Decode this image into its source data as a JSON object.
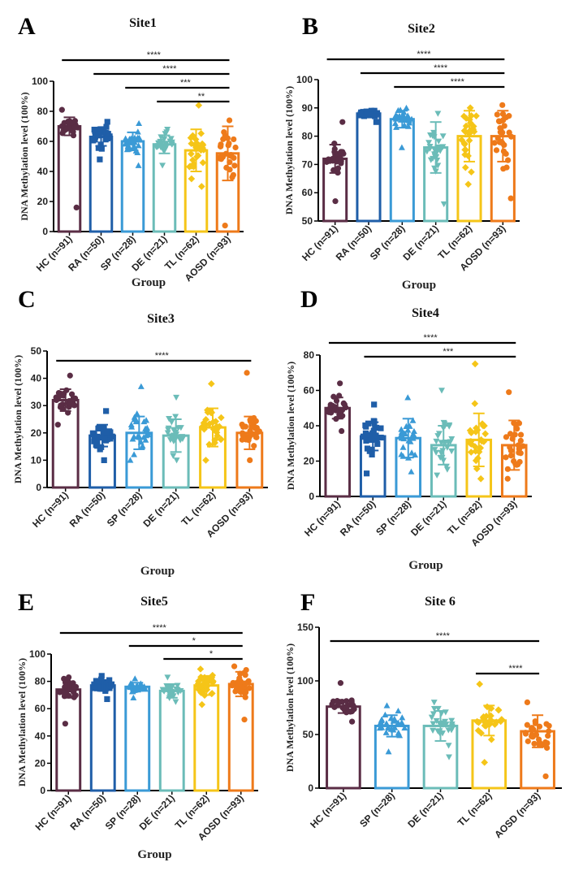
{
  "figure": {
    "group_colors": {
      "HC": "#5a2d45",
      "RA": "#1f5ea8",
      "SP": "#3a9ad6",
      "DE": "#6bbcb8",
      "TL": "#f5c518",
      "AOSD": "#ee7a1a"
    },
    "group_markers": {
      "HC": "circle",
      "RA": "square",
      "SP": "triangle-up",
      "DE": "triangle-down",
      "TL": "diamond",
      "AOSD": "circle"
    }
  },
  "chart_data": [
    {
      "id": "A",
      "type": "bar",
      "letter": "A",
      "title": "Site1",
      "xlabel": "Group",
      "ylabel": "DNA Methylation level (100%)",
      "categories": [
        "HC (n=91)",
        "RA (n=50)",
        "SP (n=28)",
        "DE (n=21)",
        "TL (n=62)",
        "AOSD (n=93)"
      ],
      "groups": [
        "HC",
        "RA",
        "SP",
        "DE",
        "TL",
        "AOSD"
      ],
      "ylim": [
        0,
        100
      ],
      "yticks": [
        0,
        20,
        40,
        60,
        80,
        100
      ],
      "means": [
        70,
        63,
        60,
        58,
        54,
        52
      ],
      "sd": [
        6,
        6,
        6,
        6,
        14,
        18
      ],
      "point_range": [
        [
          16,
          81
        ],
        [
          48,
          73
        ],
        [
          44,
          72
        ],
        [
          44,
          68
        ],
        [
          30,
          84
        ],
        [
          4,
          74
        ]
      ],
      "significance": [
        {
          "from": 0,
          "to": 5,
          "label": "****"
        },
        {
          "from": 1,
          "to": 5,
          "label": "****"
        },
        {
          "from": 2,
          "to": 5,
          "label": "***"
        },
        {
          "from": 3,
          "to": 5,
          "label": "**"
        }
      ],
      "show_group_label": true
    },
    {
      "id": "B",
      "type": "bar",
      "letter": "B",
      "title": "Site2",
      "xlabel": "Group",
      "ylabel": "DNA Methylation level (100%)",
      "categories": [
        "HC (n=91)",
        "RA (n=50)",
        "SP (n=28)",
        "DE (n=21)",
        "TL (n=62)",
        "AOSD (n=93)"
      ],
      "groups": [
        "HC",
        "RA",
        "SP",
        "DE",
        "TL",
        "AOSD"
      ],
      "ylim": [
        50,
        100
      ],
      "yticks": [
        50,
        60,
        70,
        80,
        90,
        100
      ],
      "means": [
        72,
        88,
        86,
        76,
        80,
        80
      ],
      "sd": [
        5,
        1,
        3,
        9,
        9,
        9
      ],
      "point_range": [
        [
          57,
          85
        ],
        [
          85,
          89
        ],
        [
          76,
          90
        ],
        [
          56,
          88
        ],
        [
          63,
          90
        ],
        [
          58,
          91
        ]
      ],
      "significance": [
        {
          "from": 0,
          "to": 5,
          "label": "****"
        },
        {
          "from": 1,
          "to": 5,
          "label": "****"
        },
        {
          "from": 2,
          "to": 5,
          "label": "****"
        }
      ],
      "show_group_label": true
    },
    {
      "id": "C",
      "type": "bar",
      "letter": "C",
      "title": "Site3",
      "xlabel": "Group",
      "ylabel": "DNA Methylation level (100%)",
      "categories": [
        "HC (n=91)",
        "RA (n=50)",
        "SP (n=28)",
        "DE (n=21)",
        "TL (n=62)",
        "AOSD (n=93)"
      ],
      "groups": [
        "HC",
        "RA",
        "SP",
        "DE",
        "TL",
        "AOSD"
      ],
      "ylim": [
        0,
        50
      ],
      "yticks": [
        0,
        10,
        20,
        30,
        40,
        50
      ],
      "means": [
        32,
        19,
        20,
        19,
        22,
        20
      ],
      "sd": [
        4,
        4,
        6,
        6,
        7,
        6
      ],
      "point_range": [
        [
          23,
          41
        ],
        [
          10,
          28
        ],
        [
          10,
          37
        ],
        [
          10,
          33
        ],
        [
          10,
          38
        ],
        [
          10,
          42
        ]
      ],
      "significance": [
        {
          "from": 0,
          "to": 5,
          "label": "****"
        }
      ],
      "show_group_label": true
    },
    {
      "id": "D",
      "type": "bar",
      "letter": "D",
      "title": "Site4",
      "xlabel": "Group",
      "ylabel": "DNA Methylation level (100%)",
      "categories": [
        "HC (n=91)",
        "RA (n=50)",
        "SP (n=28)",
        "DE (n=21)",
        "TL (n=62)",
        "AOSD (n=93)"
      ],
      "groups": [
        "HC",
        "RA",
        "SP",
        "DE",
        "TL",
        "AOSD"
      ],
      "ylim": [
        0,
        80
      ],
      "yticks": [
        0,
        20,
        40,
        60,
        80
      ],
      "means": [
        50,
        34,
        33,
        29,
        32,
        29
      ],
      "sd": [
        6,
        8,
        11,
        11,
        15,
        14
      ],
      "point_range": [
        [
          37,
          64
        ],
        [
          13,
          52
        ],
        [
          14,
          56
        ],
        [
          12,
          60
        ],
        [
          10,
          75
        ],
        [
          10,
          59
        ]
      ],
      "significance": [
        {
          "from": 0,
          "to": 5,
          "label": "****"
        },
        {
          "from": 1,
          "to": 5,
          "label": "***"
        }
      ],
      "show_group_label": true
    },
    {
      "id": "E",
      "type": "bar",
      "letter": "E",
      "title": "Site5",
      "xlabel": "Group",
      "ylabel": "DNA Methylation level (100%)",
      "categories": [
        "HC (n=91)",
        "RA (n=50)",
        "SP (n=28)",
        "DE (n=21)",
        "TL (n=62)",
        "AOSD (n=93)"
      ],
      "groups": [
        "HC",
        "RA",
        "SP",
        "DE",
        "TL",
        "AOSD"
      ],
      "ylim": [
        0,
        100
      ],
      "yticks": [
        0,
        20,
        40,
        60,
        80,
        100
      ],
      "means": [
        74,
        77,
        76,
        73,
        77,
        78
      ],
      "sd": [
        6,
        4,
        3,
        5,
        7,
        9
      ],
      "point_range": [
        [
          49,
          83
        ],
        [
          67,
          84
        ],
        [
          68,
          82
        ],
        [
          65,
          83
        ],
        [
          63,
          89
        ],
        [
          52,
          91
        ]
      ],
      "significance": [
        {
          "from": 0,
          "to": 5,
          "label": "****"
        },
        {
          "from": 2,
          "to": 5,
          "label": "*"
        },
        {
          "from": 3,
          "to": 5,
          "label": "*"
        }
      ],
      "show_group_label": true
    },
    {
      "id": "F",
      "type": "bar",
      "letter": "F",
      "title": "Site 6",
      "xlabel": "",
      "ylabel": "DNA Methylation level (100%)",
      "categories": [
        "HC (n=91)",
        "SP (n=28)",
        "DE (n=21)",
        "TL (n=62)",
        "AOSD (n=93)"
      ],
      "groups": [
        "HC",
        "SP",
        "DE",
        "TL",
        "AOSD"
      ],
      "ylim": [
        0,
        150
      ],
      "yticks": [
        0,
        50,
        100,
        150
      ],
      "means": [
        76,
        58,
        58,
        63,
        53
      ],
      "sd": [
        6,
        10,
        14,
        14,
        15
      ],
      "point_range": [
        [
          62,
          98
        ],
        [
          34,
          77
        ],
        [
          29,
          80
        ],
        [
          24,
          97
        ],
        [
          11,
          80
        ]
      ],
      "significance": [
        {
          "from": 0,
          "to": 4,
          "label": "****"
        },
        {
          "from": 3,
          "to": 4,
          "label": "****"
        }
      ],
      "show_group_label": false
    }
  ]
}
